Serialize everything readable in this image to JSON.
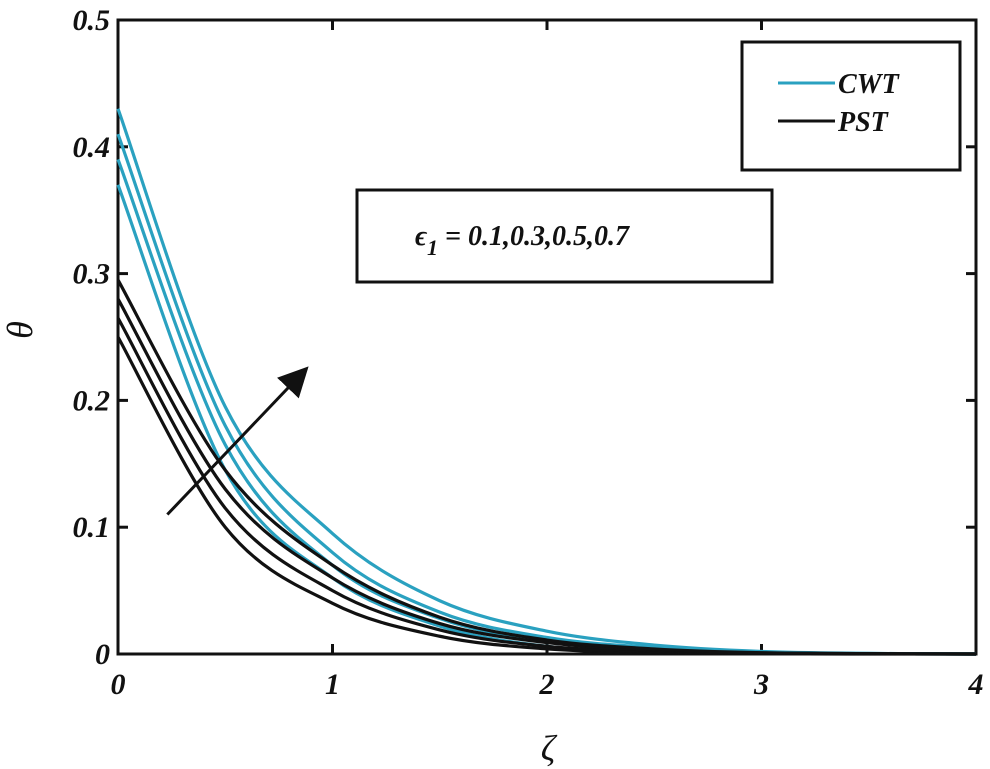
{
  "chart_data": {
    "type": "line",
    "title": "",
    "xlabel": "ζ",
    "ylabel": "θ",
    "xlim": [
      0,
      4
    ],
    "ylim": [
      0,
      0.5
    ],
    "x_ticks": [
      "0",
      "1",
      "2",
      "3",
      "4"
    ],
    "y_ticks": [
      "0",
      "0.1",
      "0.2",
      "0.3",
      "0.4",
      "0.5"
    ],
    "grid": false,
    "legend_position": "top-right",
    "legend": [
      {
        "label": "CWT",
        "color": "#2aa1c0"
      },
      {
        "label": "PST",
        "color": "#111111"
      }
    ],
    "annotation": {
      "symbol": "ϵ",
      "subscript": "1",
      "text": " = 0.1,0.3,0.5,0.7"
    },
    "series": [
      {
        "group": "CWT",
        "color": "#2aa1c0",
        "x": [
          0,
          0.5,
          1,
          1.5,
          2,
          2.5,
          3,
          3.5,
          4
        ],
        "y": [
          0.37,
          0.145,
          0.06,
          0.022,
          0.006,
          0.002,
          0.0005,
          0.0001,
          0
        ]
      },
      {
        "group": "CWT",
        "color": "#2aa1c0",
        "x": [
          0,
          0.5,
          1,
          1.5,
          2,
          2.5,
          3,
          3.5,
          4
        ],
        "y": [
          0.39,
          0.165,
          0.07,
          0.028,
          0.01,
          0.003,
          0.001,
          0.0002,
          0
        ]
      },
      {
        "group": "CWT",
        "color": "#2aa1c0",
        "x": [
          0,
          0.5,
          1,
          1.5,
          2,
          2.5,
          3,
          3.5,
          4
        ],
        "y": [
          0.41,
          0.18,
          0.08,
          0.033,
          0.013,
          0.005,
          0.0015,
          0.0004,
          0
        ]
      },
      {
        "group": "CWT",
        "color": "#2aa1c0",
        "x": [
          0,
          0.5,
          1,
          1.5,
          2,
          2.5,
          3,
          3.5,
          4
        ],
        "y": [
          0.43,
          0.195,
          0.095,
          0.042,
          0.018,
          0.007,
          0.002,
          0.0005,
          0
        ]
      },
      {
        "group": "PST",
        "color": "#111111",
        "x": [
          0,
          0.5,
          1,
          1.5,
          2,
          2.5,
          3,
          3.5,
          4
        ],
        "y": [
          0.25,
          0.1,
          0.04,
          0.014,
          0.004,
          0.001,
          0.0002,
          0,
          0
        ]
      },
      {
        "group": "PST",
        "color": "#111111",
        "x": [
          0,
          0.5,
          1,
          1.5,
          2,
          2.5,
          3,
          3.5,
          4
        ],
        "y": [
          0.265,
          0.115,
          0.05,
          0.019,
          0.006,
          0.002,
          0.0005,
          0.0001,
          0
        ]
      },
      {
        "group": "PST",
        "color": "#111111",
        "x": [
          0,
          0.5,
          1,
          1.5,
          2,
          2.5,
          3,
          3.5,
          4
        ],
        "y": [
          0.28,
          0.13,
          0.06,
          0.024,
          0.009,
          0.003,
          0.0008,
          0.0002,
          0
        ]
      },
      {
        "group": "PST",
        "color": "#111111",
        "x": [
          0,
          0.5,
          1,
          1.5,
          2,
          2.5,
          3,
          3.5,
          4
        ],
        "y": [
          0.295,
          0.145,
          0.07,
          0.029,
          0.011,
          0.004,
          0.001,
          0.0003,
          0
        ]
      }
    ],
    "arrow": {
      "from": {
        "x": 0.23,
        "y": 0.11
      },
      "to": {
        "x": 0.85,
        "y": 0.22
      }
    }
  }
}
